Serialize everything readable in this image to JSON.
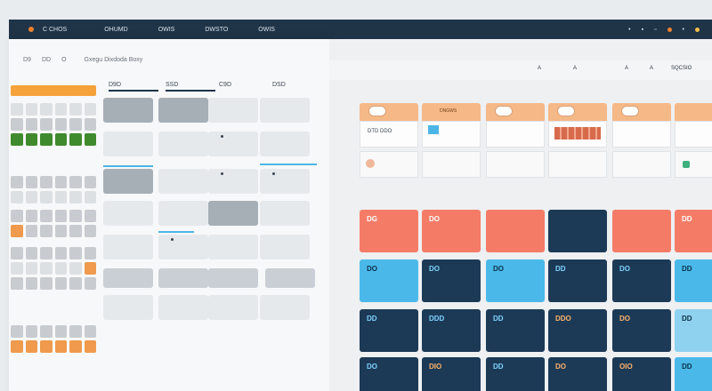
{
  "topbar": {
    "brand": "C CHOS",
    "menu": [
      "OHUMD",
      "OWIS",
      "DWSTO",
      "OWIS"
    ],
    "right_icons": [
      "search-icon",
      "user-icon"
    ],
    "accent": "#f0812c"
  },
  "left_panel": {
    "toolbar": [
      "D9",
      "DD",
      "O"
    ],
    "title": "Gxegu Dixdoda Boxy",
    "col_headers": [
      "D9D",
      "SSD",
      "C9D",
      "DSD"
    ]
  },
  "board": {
    "toolbar": [
      "A",
      "A",
      "A",
      "A",
      "SQCSIO"
    ],
    "head_labels": [
      "",
      "DNGWS",
      "",
      "",
      "",
      ""
    ],
    "row1_text": [
      "DTD DDO",
      "",
      "",
      "",
      "",
      ""
    ],
    "cards": {
      "coral": [
        "DG",
        "DO",
        "",
        "",
        "",
        "DD"
      ],
      "blue": [
        "DO",
        "DO",
        "DO",
        "DD",
        "DO",
        "DD"
      ],
      "navy": [
        "DD",
        "DDD",
        "DD",
        "DDO",
        "DO",
        "DD"
      ],
      "navy_bottom": [
        "DO",
        "DIO",
        "DD",
        "DO",
        "OIO",
        "DD"
      ]
    },
    "colors": {
      "coral": "#f47c67",
      "blue": "#4ab9ea",
      "navy": "#1c3a56",
      "peach": "#f5b887"
    }
  }
}
